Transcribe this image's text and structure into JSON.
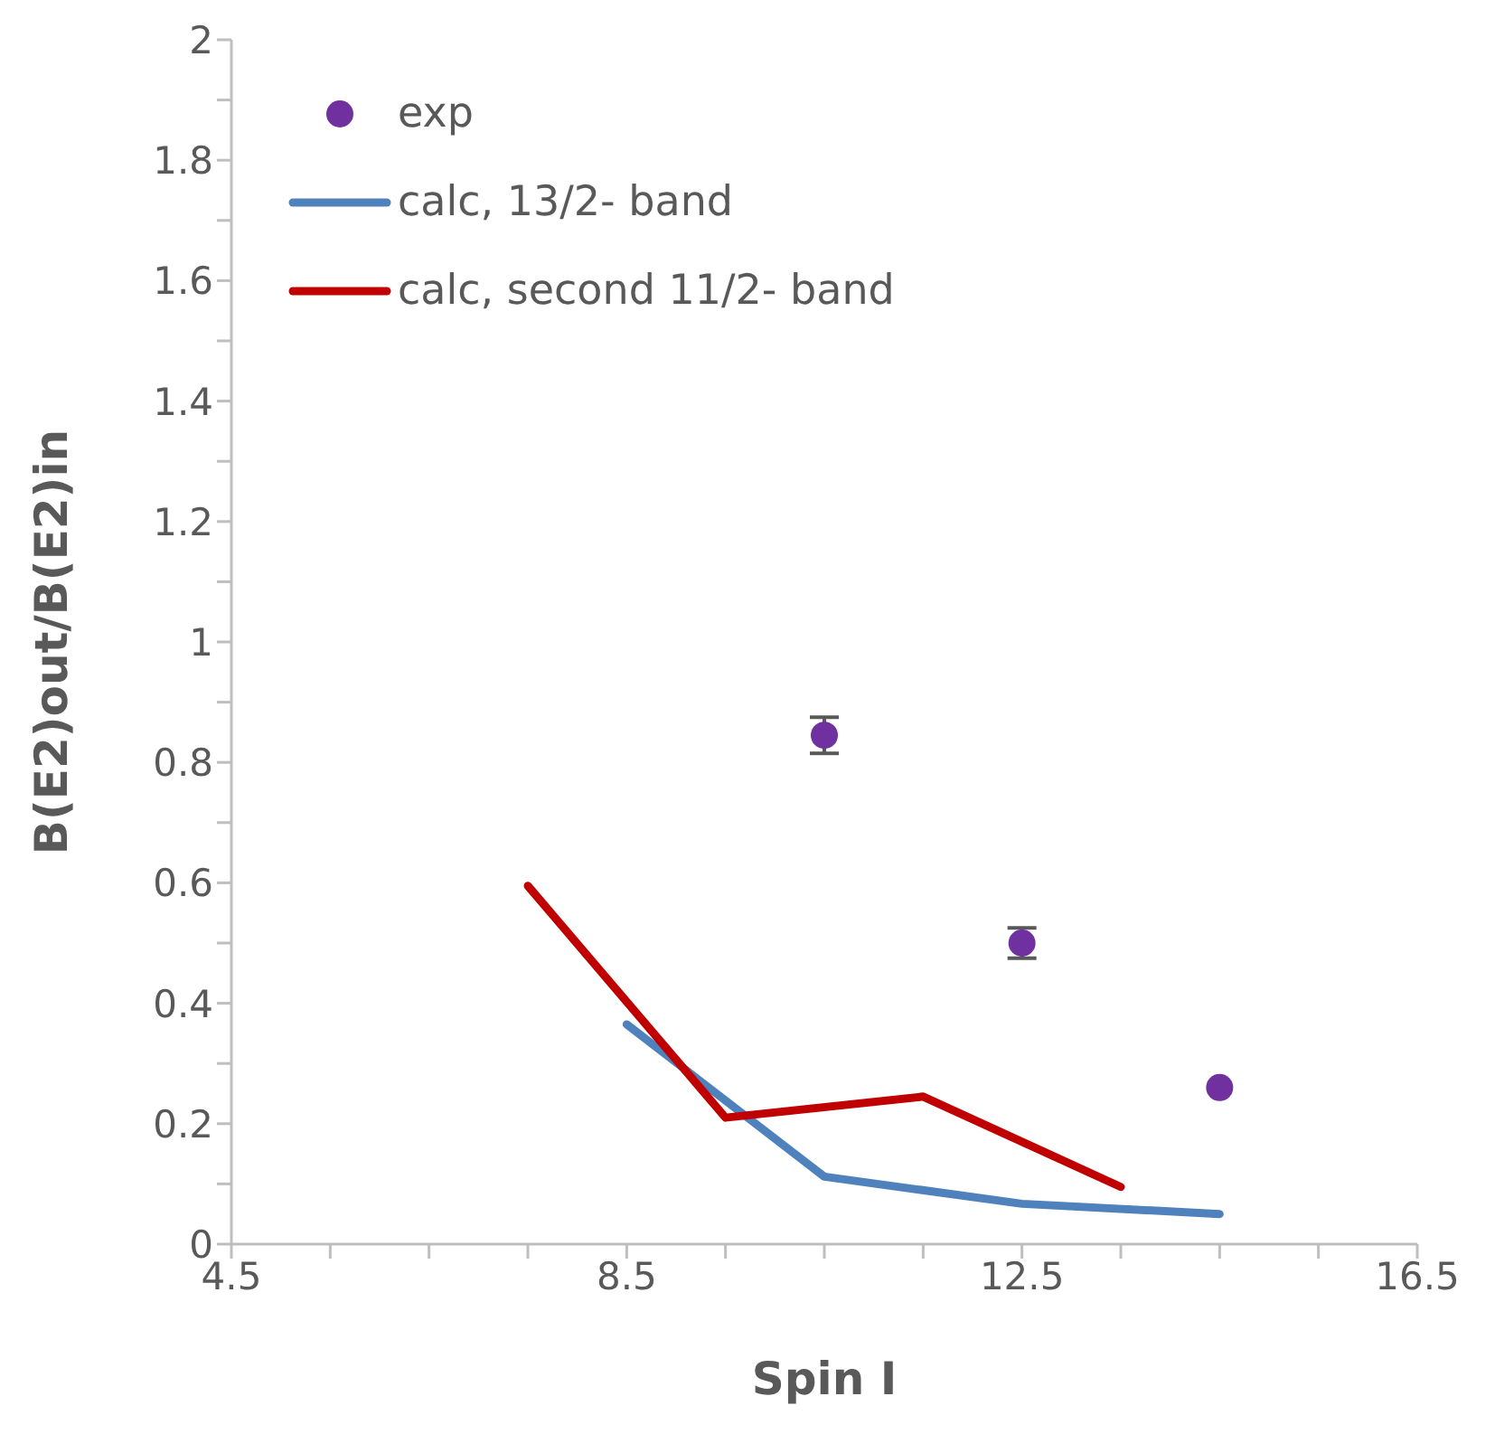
{
  "chart_data": {
    "type": "line",
    "xlabel": "Spin I",
    "ylabel": "B(E2)out/B(E2)in",
    "xlim": [
      4.5,
      16.5
    ],
    "xticks": [
      4.5,
      {
        "value": 5.5,
        "label": null
      },
      {
        "value": 6.5,
        "label": null
      },
      {
        "value": 7.5,
        "label": null
      },
      8.5,
      {
        "value": 9.5,
        "label": null
      },
      {
        "value": 10.5,
        "label": null
      },
      {
        "value": 11.5,
        "label": null
      },
      12.5,
      {
        "value": 13.5,
        "label": null
      },
      {
        "value": 14.5,
        "label": null
      },
      {
        "value": 15.5,
        "label": null
      },
      16.5
    ],
    "ylim": [
      0,
      2
    ],
    "yticks": [
      0,
      {
        "value": 0.1,
        "label": null
      },
      0.2,
      {
        "value": 0.3,
        "label": null
      },
      0.4,
      {
        "value": 0.5,
        "label": null
      },
      0.6,
      {
        "value": 0.7,
        "label": null
      },
      0.8,
      {
        "value": 0.9,
        "label": null
      },
      1,
      {
        "value": 1.1,
        "label": null
      },
      1.2,
      {
        "value": 1.3,
        "label": null
      },
      1.4,
      {
        "value": 1.5,
        "label": null
      },
      1.6,
      {
        "value": 1.7,
        "label": null
      },
      1.8,
      {
        "value": 1.9,
        "label": null
      },
      2
    ],
    "grid": false,
    "legend": "top left",
    "series": [
      {
        "name": "exp",
        "type": "scatter",
        "color": "#7030a0",
        "marker": "circle",
        "x": [
          10.5,
          12.5,
          14.5
        ],
        "values": [
          0.845,
          0.5,
          0.26
        ],
        "errors": [
          0.03,
          0.025,
          null
        ]
      },
      {
        "name": "calc, 13/2- band",
        "color": "#4f81bd",
        "marker": "none",
        "line_style": "solid",
        "x": [
          8.5,
          10.5,
          12.5,
          14.5
        ],
        "values": [
          0.365,
          0.112,
          0.067,
          0.05
        ]
      },
      {
        "name": "calc, second 11/2- band",
        "color": "#c00000",
        "marker": "none",
        "line_style": "solid",
        "x": [
          7.5,
          9.5,
          11.5,
          13.5
        ],
        "values": [
          0.595,
          0.21,
          0.245,
          0.095
        ]
      }
    ]
  }
}
